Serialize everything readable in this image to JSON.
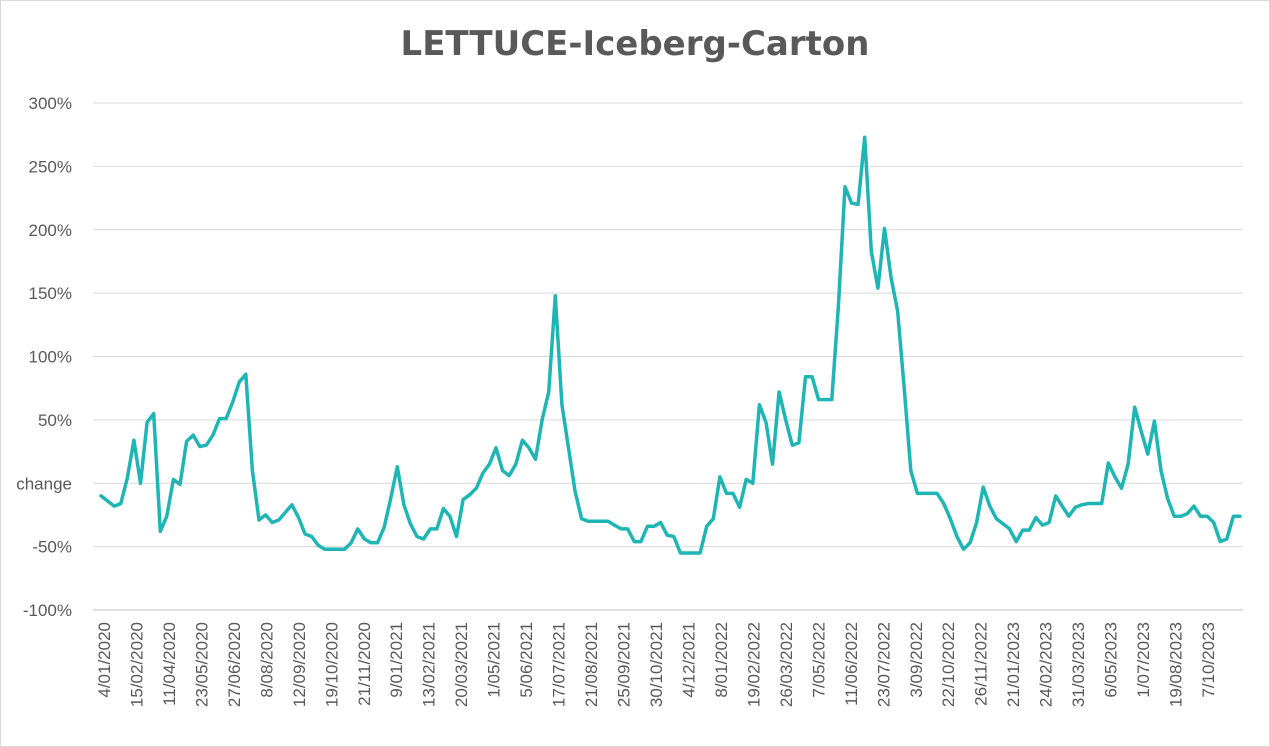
{
  "chart_data": {
    "type": "line",
    "title": "LETTUCE-Iceberg-Carton",
    "y_tick_labels": [
      "300%",
      "250%",
      "200%",
      "150%",
      "100%",
      "50%",
      "change",
      "-50%",
      "-100%"
    ],
    "y_tick_values": [
      300,
      250,
      200,
      150,
      100,
      50,
      0,
      -50,
      -100
    ],
    "ylim": [
      -100,
      300
    ],
    "x_tick_labels": [
      "4/01/2020",
      "15/02/2020",
      "11/04/2020",
      "23/05/2020",
      "27/06/2020",
      "8/08/2020",
      "12/09/2020",
      "19/10/2020",
      "21/11/2020",
      "9/01/2021",
      "13/02/2021",
      "20/03/2021",
      "1/05/2021",
      "5/06/2021",
      "17/07/2021",
      "21/08/2021",
      "25/09/2021",
      "30/10/2021",
      "4/12/2021",
      "8/01/2022",
      "19/02/2022",
      "26/03/2022",
      "7/05/2022",
      "11/06/2022",
      "23/07/2022",
      "3/09/2022",
      "22/10/2022",
      "26/11/2022",
      "21/01/2023",
      "24/02/2023",
      "31/03/2023",
      "6/05/2023",
      "1/07/2023",
      "19/08/2023",
      "7/10/2023"
    ],
    "grid": true,
    "line_color": "#1fb5b5",
    "series": [
      {
        "values": [
          -10,
          -14,
          -18,
          -16,
          4,
          34,
          0,
          48,
          55,
          -38,
          -26,
          3,
          -1,
          33,
          38,
          29,
          30,
          38,
          51,
          51,
          64,
          80,
          86,
          10,
          -29,
          -25,
          -31,
          -29,
          -23,
          -17,
          -27,
          -40,
          -42,
          -49,
          -52,
          -52,
          -52,
          -52,
          -47,
          -36,
          -44,
          -47,
          -47,
          -35,
          -12,
          13,
          -17,
          -32,
          -42,
          -44,
          -36,
          -36,
          -20,
          -26,
          -42,
          -13,
          -9,
          -4,
          8,
          15,
          28,
          10,
          6,
          15,
          34,
          28,
          19,
          50,
          72,
          148,
          62,
          28,
          -6,
          -28,
          -30,
          -30,
          -30,
          -30,
          -33,
          -36,
          -36,
          -46,
          -46,
          -34,
          -34,
          -31,
          -41,
          -42,
          -55,
          -55,
          -55,
          -55,
          -34,
          -28,
          5,
          -8,
          -8,
          -19,
          3,
          0,
          62,
          48,
          15,
          72,
          50,
          30,
          32,
          84,
          84,
          66,
          66,
          66,
          140,
          234,
          221,
          220,
          273,
          183,
          154,
          201,
          162,
          136,
          75,
          10,
          -8,
          -8,
          -8,
          -8,
          -16,
          -28,
          -42,
          -52,
          -47,
          -31,
          -3,
          -18,
          -28,
          -32,
          -36,
          -46,
          -37,
          -37,
          -27,
          -33,
          -31,
          -10,
          -18,
          -26,
          -19,
          -17,
          -16,
          -16,
          -16,
          16,
          5,
          -4,
          15,
          60,
          41,
          23,
          49,
          10,
          -12,
          -26,
          -26,
          -24,
          -18,
          -26,
          -26,
          -31,
          -46,
          -44,
          -26,
          -26
        ]
      }
    ]
  }
}
